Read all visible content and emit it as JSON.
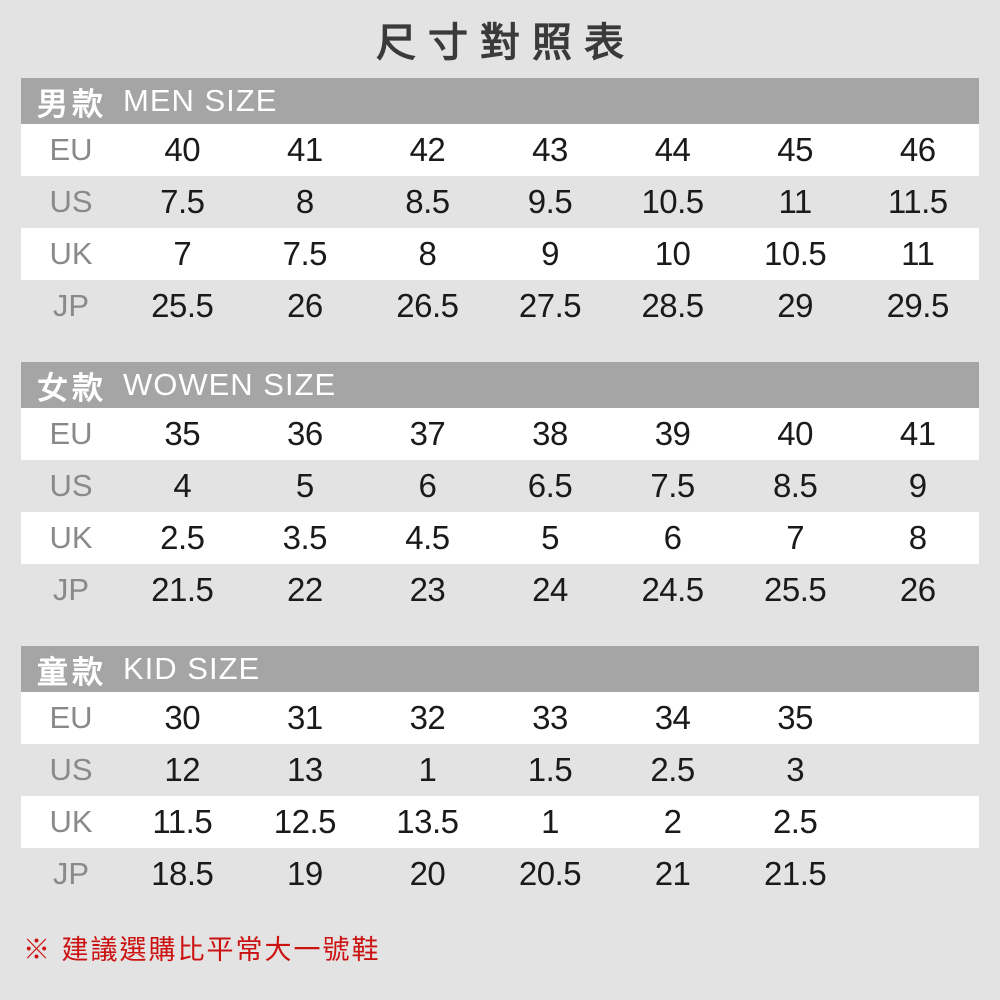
{
  "title": "尺寸對照表",
  "sections": [
    {
      "label_zh": "男款",
      "label_en": "MEN SIZE",
      "rows": [
        {
          "label": "EU",
          "values": [
            "40",
            "41",
            "42",
            "43",
            "44",
            "45",
            "46"
          ]
        },
        {
          "label": "US",
          "values": [
            "7.5",
            "8",
            "8.5",
            "9.5",
            "10.5",
            "11",
            "11.5"
          ]
        },
        {
          "label": "UK",
          "values": [
            "7",
            "7.5",
            "8",
            "9",
            "10",
            "10.5",
            "11"
          ]
        },
        {
          "label": "JP",
          "values": [
            "25.5",
            "26",
            "26.5",
            "27.5",
            "28.5",
            "29",
            "29.5"
          ]
        }
      ]
    },
    {
      "label_zh": "女款",
      "label_en": "WOWEN SIZE",
      "rows": [
        {
          "label": "EU",
          "values": [
            "35",
            "36",
            "37",
            "38",
            "39",
            "40",
            "41"
          ]
        },
        {
          "label": "US",
          "values": [
            "4",
            "5",
            "6",
            "6.5",
            "7.5",
            "8.5",
            "9"
          ]
        },
        {
          "label": "UK",
          "values": [
            "2.5",
            "3.5",
            "4.5",
            "5",
            "6",
            "7",
            "8"
          ]
        },
        {
          "label": "JP",
          "values": [
            "21.5",
            "22",
            "23",
            "24",
            "24.5",
            "25.5",
            "26"
          ]
        }
      ]
    },
    {
      "label_zh": "童款",
      "label_en": "KID SIZE",
      "rows": [
        {
          "label": "EU",
          "values": [
            "30",
            "31",
            "32",
            "33",
            "34",
            "35"
          ]
        },
        {
          "label": "US",
          "values": [
            "12",
            "13",
            "1",
            "1.5",
            "2.5",
            "3"
          ]
        },
        {
          "label": "UK",
          "values": [
            "11.5",
            "12.5",
            "13.5",
            "1",
            "2",
            "2.5"
          ]
        },
        {
          "label": "JP",
          "values": [
            "18.5",
            "19",
            "20",
            "20.5",
            "21",
            "21.5"
          ]
        }
      ]
    }
  ],
  "footnote": "※ 建議選購比平常大一號鞋",
  "colors": {
    "background": "#e3e3e3",
    "header_band": "#a5a5a5",
    "stripe": "#ffffff",
    "label_gray": "#8a8a8a",
    "value_black": "#1a1a1a",
    "title_dark": "#3a3a3a",
    "note_red": "#cc1111"
  }
}
